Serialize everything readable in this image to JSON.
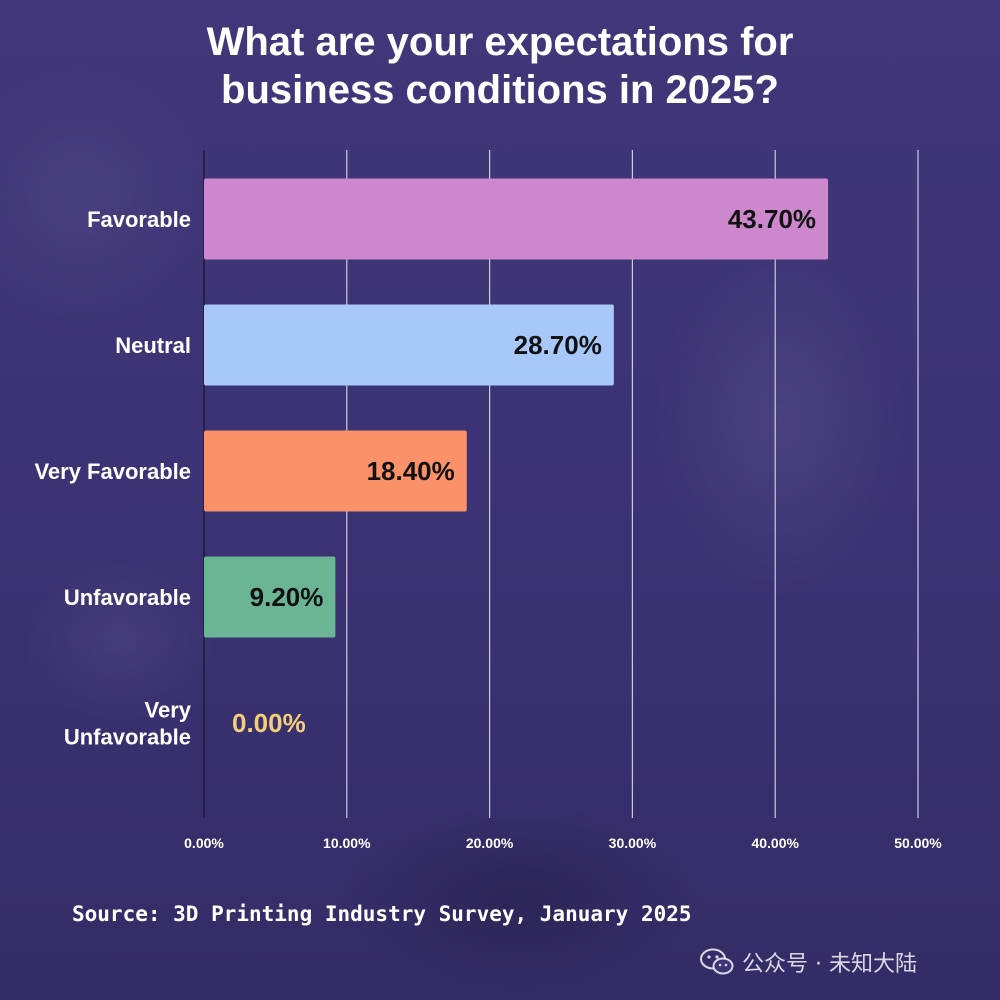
{
  "title_lines": [
    "What are your expectations for",
    "business conditions in 2025?"
  ],
  "source": "Source: 3D Printing Industry Survey, January 2025",
  "watermark": {
    "text": "公众号 · 未知大陆",
    "icon": "wechat-icon"
  },
  "colors": {
    "background": "#3e3478",
    "grid": "#ffffff",
    "label": "#ffffff",
    "value_dark": "#111111",
    "value_light": "#f3cf7a"
  },
  "chart_data": {
    "type": "bar",
    "orientation": "horizontal",
    "title": "What are your expectations for business conditions in 2025?",
    "xlabel": "",
    "ylabel": "",
    "xlim": [
      0,
      50
    ],
    "grid": true,
    "unit": "%",
    "ticks": [
      "0.00%",
      "10.00%",
      "20.00%",
      "30.00%",
      "40.00%",
      "50.00%"
    ],
    "tick_values": [
      0,
      10,
      20,
      30,
      40,
      50
    ],
    "categories": [
      [
        "Favorable"
      ],
      [
        "Neutral"
      ],
      [
        "Very Favorable"
      ],
      [
        "Unfavorable"
      ],
      [
        "Very",
        "Unfavorable"
      ]
    ],
    "values": [
      43.7,
      28.7,
      18.4,
      9.2,
      0.0
    ],
    "value_labels": [
      "43.70%",
      "28.70%",
      "18.40%",
      "9.20%",
      "0.00%"
    ],
    "bar_colors": [
      "#cd88cd",
      "#a8c8fa",
      "#fb9168",
      "#6ab594",
      "#f3cf7a"
    ]
  }
}
